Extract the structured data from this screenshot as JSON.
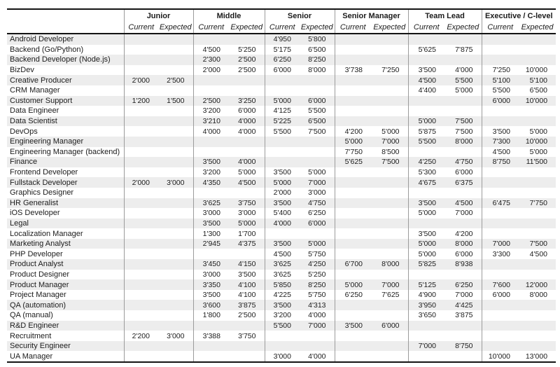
{
  "colors": {
    "stripe": "#ededed",
    "border": "#141414",
    "grid_line": "#9b9b9b",
    "text": "#1c1c1c"
  },
  "chart_data": {
    "type": "table",
    "column_groups": [
      "Junior",
      "Middle",
      "Senior",
      "Senior Manager",
      "Team Lead",
      "Executive / C-level"
    ],
    "sub_columns": [
      "Current",
      "Expected"
    ],
    "rows": [
      {
        "role": "Android Developer",
        "values": [
          "",
          "",
          "",
          "",
          "4'950",
          "5'800",
          "",
          "",
          "",
          "",
          "",
          ""
        ]
      },
      {
        "role": "Backend (Go/Python)",
        "values": [
          "",
          "",
          "4'500",
          "5'250",
          "5'175",
          "6'500",
          "",
          "",
          "5'625",
          "7'875",
          "",
          ""
        ]
      },
      {
        "role": "Backend Developer (Node.js)",
        "values": [
          "",
          "",
          "2'300",
          "2'500",
          "6'250",
          "8'250",
          "",
          "",
          "",
          "",
          "",
          ""
        ]
      },
      {
        "role": "BizDev",
        "values": [
          "",
          "",
          "2'000",
          "2'500",
          "6'000",
          "8'000",
          "3'738",
          "7'250",
          "3'500",
          "4'000",
          "7'250",
          "10'000"
        ]
      },
      {
        "role": "Creative Producer",
        "values": [
          "2'000",
          "2'500",
          "",
          "",
          "",
          "",
          "",
          "",
          "4'500",
          "5'500",
          "5'100",
          "5'100"
        ]
      },
      {
        "role": "CRM Manager",
        "values": [
          "",
          "",
          "",
          "",
          "",
          "",
          "",
          "",
          "4'400",
          "5'000",
          "5'500",
          "6'500"
        ]
      },
      {
        "role": "Customer Support",
        "values": [
          "1'200",
          "1'500",
          "2'500",
          "3'250",
          "5'000",
          "6'000",
          "",
          "",
          "",
          "",
          "6'000",
          "10'000"
        ]
      },
      {
        "role": "Data Engineer",
        "values": [
          "",
          "",
          "3'200",
          "6'000",
          "4'125",
          "5'500",
          "",
          "",
          "",
          "",
          "",
          ""
        ]
      },
      {
        "role": "Data Scientist",
        "values": [
          "",
          "",
          "3'210",
          "4'000",
          "5'225",
          "6'500",
          "",
          "",
          "5'000",
          "7'500",
          "",
          ""
        ]
      },
      {
        "role": "DevOps",
        "values": [
          "",
          "",
          "4'000",
          "4'000",
          "5'500",
          "7'500",
          "4'200",
          "5'000",
          "5'875",
          "7'500",
          "3'500",
          "5'000"
        ]
      },
      {
        "role": "Engineering Manager",
        "values": [
          "",
          "",
          "",
          "",
          "",
          "",
          "5'000",
          "7'000",
          "5'500",
          "8'000",
          "7'300",
          "10'000"
        ]
      },
      {
        "role": "Engineering Manager (backend)",
        "values": [
          "",
          "",
          "",
          "",
          "",
          "",
          "7'750",
          "8'500",
          "",
          "",
          "4'500",
          "5'000"
        ]
      },
      {
        "role": "Finance",
        "values": [
          "",
          "",
          "3'500",
          "4'000",
          "",
          "",
          "5'625",
          "7'500",
          "4'250",
          "4'750",
          "8'750",
          "11'500"
        ]
      },
      {
        "role": "Frontend Developer",
        "values": [
          "",
          "",
          "3'200",
          "5'000",
          "3'500",
          "5'000",
          "",
          "",
          "5'300",
          "6'000",
          "",
          ""
        ]
      },
      {
        "role": "Fullstack Developer",
        "values": [
          "2'000",
          "3'000",
          "4'350",
          "4'500",
          "5'000",
          "7'000",
          "",
          "",
          "4'675",
          "6'375",
          "",
          ""
        ]
      },
      {
        "role": "Graphics Designer",
        "values": [
          "",
          "",
          "",
          "",
          "2'000",
          "3'000",
          "",
          "",
          "",
          "",
          "",
          ""
        ]
      },
      {
        "role": "HR Generalist",
        "values": [
          "",
          "",
          "3'625",
          "3'750",
          "3'500",
          "4'750",
          "",
          "",
          "3'500",
          "4'500",
          "6'475",
          "7'750"
        ]
      },
      {
        "role": "iOS Developer",
        "values": [
          "",
          "",
          "3'000",
          "3'000",
          "5'400",
          "6'250",
          "",
          "",
          "5'000",
          "7'000",
          "",
          ""
        ]
      },
      {
        "role": "Legal",
        "values": [
          "",
          "",
          "3'500",
          "5'000",
          "4'000",
          "6'000",
          "",
          "",
          "",
          "",
          "",
          ""
        ]
      },
      {
        "role": "Localization Manager",
        "values": [
          "",
          "",
          "1'300",
          "1'700",
          "",
          "",
          "",
          "",
          "3'500",
          "4'200",
          "",
          ""
        ]
      },
      {
        "role": "Marketing Analyst",
        "values": [
          "",
          "",
          "2'945",
          "4'375",
          "3'500",
          "5'000",
          "",
          "",
          "5'000",
          "8'000",
          "7'000",
          "7'500"
        ]
      },
      {
        "role": "PHP Developer",
        "values": [
          "",
          "",
          "",
          "",
          "4'500",
          "5'750",
          "",
          "",
          "5'000",
          "6'000",
          "3'300",
          "4'500"
        ]
      },
      {
        "role": "Product Analyst",
        "values": [
          "",
          "",
          "3'450",
          "4'150",
          "3'625",
          "4'250",
          "6'700",
          "8'000",
          "5'825",
          "8'938",
          "",
          ""
        ]
      },
      {
        "role": "Product Designer",
        "values": [
          "",
          "",
          "3'000",
          "3'500",
          "3'625",
          "5'250",
          "",
          "",
          "",
          "",
          "",
          ""
        ]
      },
      {
        "role": "Product Manager",
        "values": [
          "",
          "",
          "3'350",
          "4'100",
          "5'850",
          "8'250",
          "5'000",
          "7'000",
          "5'125",
          "6'250",
          "7'600",
          "12'000"
        ]
      },
      {
        "role": "Project Manager",
        "values": [
          "",
          "",
          "3'500",
          "4'100",
          "4'225",
          "5'750",
          "6'250",
          "7'625",
          "4'900",
          "7'000",
          "6'000",
          "8'000"
        ]
      },
      {
        "role": "QA (automation)",
        "values": [
          "",
          "",
          "3'600",
          "3'875",
          "3'500",
          "4'313",
          "",
          "",
          "3'950",
          "4'425",
          "",
          ""
        ]
      },
      {
        "role": "QA (manual)",
        "values": [
          "",
          "",
          "1'800",
          "2'500",
          "3'200",
          "4'000",
          "",
          "",
          "3'650",
          "3'875",
          "",
          ""
        ]
      },
      {
        "role": "R&D Engineer",
        "values": [
          "",
          "",
          "",
          "",
          "5'500",
          "7'000",
          "3'500",
          "6'000",
          "",
          "",
          "",
          ""
        ]
      },
      {
        "role": "Recruitment",
        "values": [
          "2'200",
          "3'000",
          "3'388",
          "3'750",
          "",
          "",
          "",
          "",
          "",
          "",
          "",
          ""
        ]
      },
      {
        "role": "Security Engineer",
        "values": [
          "",
          "",
          "",
          "",
          "",
          "",
          "",
          "",
          "7'000",
          "8'750",
          "",
          ""
        ]
      },
      {
        "role": "UA Manager",
        "values": [
          "",
          "",
          "",
          "",
          "3'000",
          "4'000",
          "",
          "",
          "",
          "",
          "10'000",
          "13'000"
        ]
      }
    ]
  }
}
